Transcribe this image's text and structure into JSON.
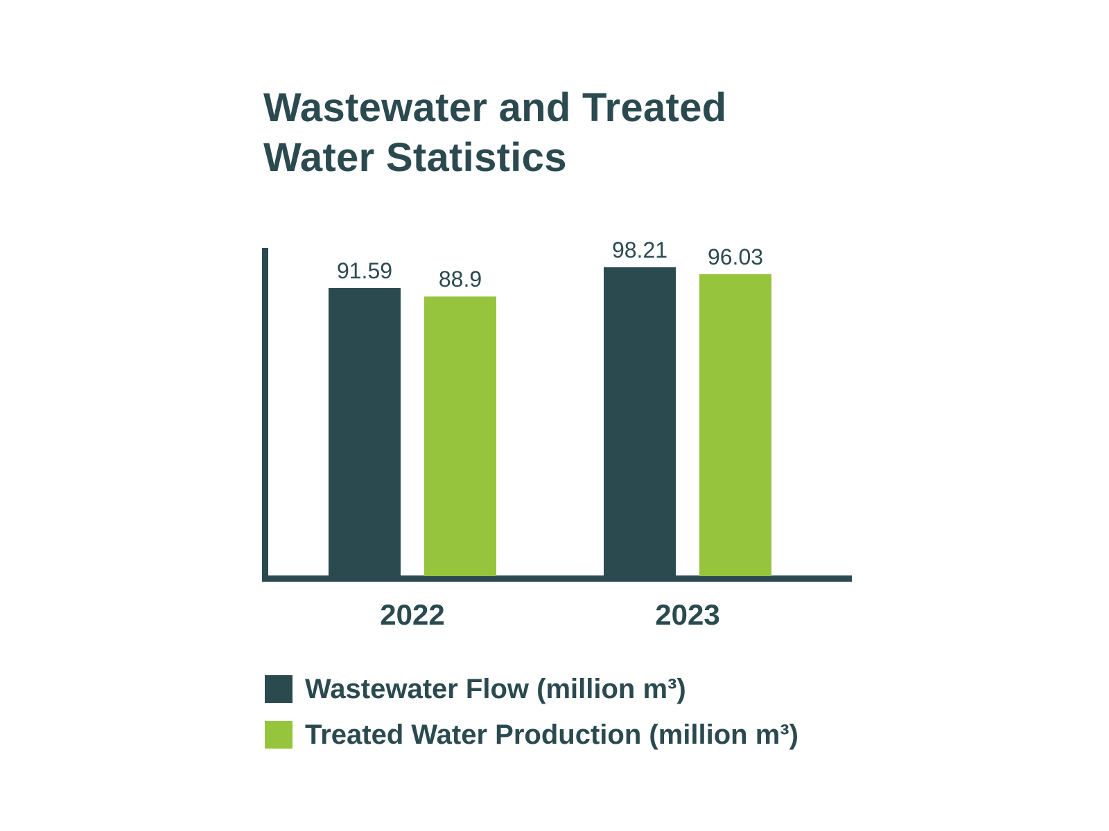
{
  "chart_data": {
    "type": "bar",
    "title": "Wastewater and Treated Water Statistics",
    "title_lines": [
      "Wastewater and Treated",
      "Water Statistics"
    ],
    "categories": [
      "2022",
      "2023"
    ],
    "series": [
      {
        "name": "Wastewater Flow (million m³)",
        "values": [
          91.59,
          98.21
        ],
        "value_labels": [
          "91.59",
          "98.21"
        ],
        "color": "#2b4a50"
      },
      {
        "name": "Treated Water Production (million m³)",
        "values": [
          88.9,
          96.03
        ],
        "value_labels": [
          "88.9",
          "96.03"
        ],
        "color": "#97c43d"
      }
    ],
    "xlabel": "",
    "ylabel": "",
    "ylim": [
      0,
      100
    ],
    "grid": false,
    "legend": "bottom"
  },
  "colors": {
    "axis": "#2b4a50",
    "text": "#2b4a50"
  }
}
